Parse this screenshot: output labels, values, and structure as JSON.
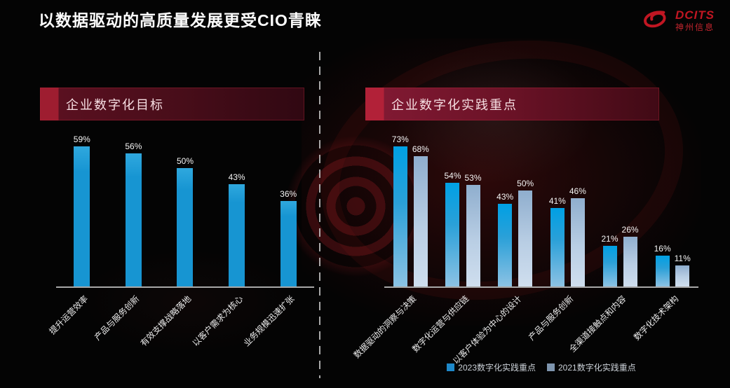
{
  "slide": {
    "title": "以数据驱动的高质量发展更受CIO青睐"
  },
  "logo": {
    "brand": "DCITS",
    "subtitle": "神州信息",
    "color": "#c01622"
  },
  "left_section": {
    "header": "企业数字化目标"
  },
  "right_section": {
    "header": "企业数字化实践重点",
    "legend": [
      {
        "label": "2023数字化实践重点",
        "color": "#1e88c9"
      },
      {
        "label": "2021数字化实践重点",
        "color": "#7e95ae"
      }
    ]
  },
  "colors": {
    "single_bar_top": "#2fa8de",
    "single_bar_bottom": "#1795d2",
    "series2023_top": "#00a0e4",
    "series2023_bottom": "#8cc2e4",
    "series2021_top": "#8faece",
    "series2021_bottom": "#cfdeee",
    "axis": "#a8a8a8",
    "banner_red": "#9e1d30"
  },
  "chart_data": [
    {
      "type": "bar",
      "title": "企业数字化目标",
      "categories": [
        "提升运营效率",
        "产品与服务创新",
        "有效支撑战略落地",
        "以客户需求为核心",
        "业务规模迅速扩张"
      ],
      "values": [
        59,
        56,
        50,
        43,
        36
      ],
      "labels": [
        "59%",
        "56%",
        "50%",
        "43%",
        "36%"
      ],
      "ylabel": "",
      "xlabel": "",
      "ylim": [
        0,
        80
      ],
      "grid": false,
      "legend_position": "none"
    },
    {
      "type": "bar",
      "title": "企业数字化实践重点",
      "categories": [
        "数据驱动的洞察与决策",
        "数字化运营与供应链",
        "以客户体验为中心的设计",
        "产品与服务创新",
        "全渠道接触点和内容",
        "数字化技术架构"
      ],
      "series": [
        {
          "name": "2023数字化实践重点",
          "values": [
            73,
            54,
            43,
            41,
            21,
            16
          ],
          "labels": [
            "73%",
            "54%",
            "43%",
            "41%",
            "21%",
            "16%"
          ]
        },
        {
          "name": "2021数字化实践重点",
          "values": [
            68,
            53,
            50,
            46,
            26,
            11
          ],
          "labels": [
            "68%",
            "53%",
            "50%",
            "46%",
            "26%",
            "11%"
          ]
        }
      ],
      "ylabel": "",
      "xlabel": "",
      "ylim": [
        0,
        80
      ],
      "grid": false,
      "legend_position": "bottom"
    }
  ]
}
